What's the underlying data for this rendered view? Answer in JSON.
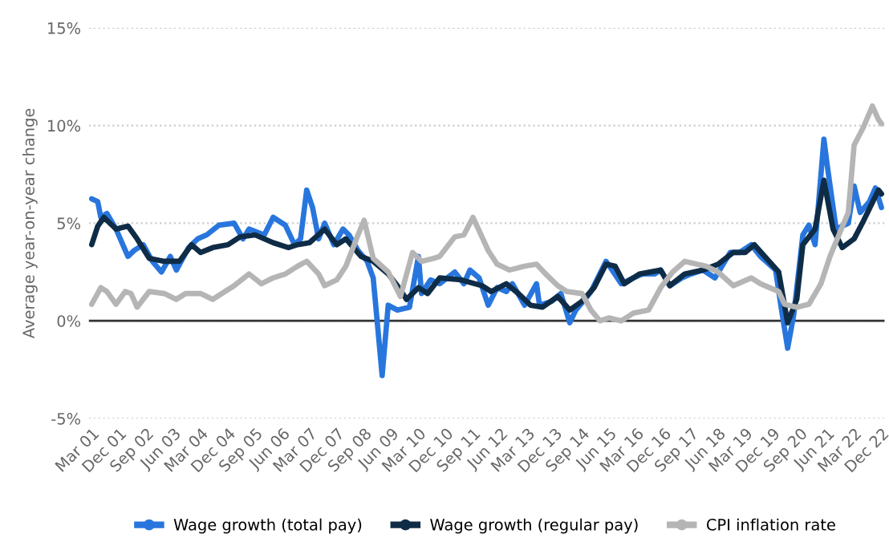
{
  "chart_data": {
    "type": "line",
    "ylabel": "Average year-on-year change",
    "xlim": [
      "2001-02",
      "2023-01"
    ],
    "ylim": [
      -5,
      15
    ],
    "yticks": [
      {
        "value": -5,
        "label": "-5%"
      },
      {
        "value": 0,
        "label": "0%"
      },
      {
        "value": 5,
        "label": "5%"
      },
      {
        "value": 10,
        "label": "10%"
      },
      {
        "value": 15,
        "label": "15%"
      }
    ],
    "xticks": [
      {
        "value": "2001-03",
        "label": "Mar 01"
      },
      {
        "value": "2001-12",
        "label": "Dec 01"
      },
      {
        "value": "2002-09",
        "label": "Sep 02"
      },
      {
        "value": "2003-06",
        "label": "Jun 03"
      },
      {
        "value": "2004-03",
        "label": "Mar 04"
      },
      {
        "value": "2004-12",
        "label": "Dec 04"
      },
      {
        "value": "2005-09",
        "label": "Sep 05"
      },
      {
        "value": "2006-06",
        "label": "Jun 06"
      },
      {
        "value": "2007-03",
        "label": "Mar 07"
      },
      {
        "value": "2007-12",
        "label": "Dec 07"
      },
      {
        "value": "2008-09",
        "label": "Sep 08"
      },
      {
        "value": "2009-06",
        "label": "Jun 09"
      },
      {
        "value": "2010-03",
        "label": "Mar 10"
      },
      {
        "value": "2010-12",
        "label": "Dec 10"
      },
      {
        "value": "2011-09",
        "label": "Sep 11"
      },
      {
        "value": "2012-06",
        "label": "Jun 12"
      },
      {
        "value": "2013-03",
        "label": "Mar 13"
      },
      {
        "value": "2013-12",
        "label": "Dec 13"
      },
      {
        "value": "2014-09",
        "label": "Sep 14"
      },
      {
        "value": "2015-06",
        "label": "Jun 15"
      },
      {
        "value": "2016-03",
        "label": "Mar 16"
      },
      {
        "value": "2016-12",
        "label": "Dec 16"
      },
      {
        "value": "2017-09",
        "label": "Sep 17"
      },
      {
        "value": "2018-06",
        "label": "Jun 18"
      },
      {
        "value": "2019-03",
        "label": "Mar 19"
      },
      {
        "value": "2019-12",
        "label": "Dec 19"
      },
      {
        "value": "2020-09",
        "label": "Sep 20"
      },
      {
        "value": "2021-06",
        "label": "Jun 21"
      },
      {
        "value": "2022-03",
        "label": "Mar 22"
      },
      {
        "value": "2022-12",
        "label": "Dec 22"
      }
    ],
    "grid": "y",
    "legend": "bottom",
    "marker": "none",
    "line_style": "solid",
    "ref_lines": [
      {
        "axis": "y",
        "value": 0,
        "color": "#333333"
      }
    ],
    "series": [
      {
        "name": "Wage growth (total pay)",
        "color": "#2876dd",
        "x": [
          "2001-03",
          "2001-05",
          "2001-06",
          "2001-08",
          "2001-11",
          "2002-03",
          "2002-05",
          "2002-08",
          "2002-11",
          "2003-02",
          "2003-05",
          "2003-07",
          "2003-11",
          "2004-02",
          "2004-05",
          "2004-09",
          "2005-02",
          "2005-05",
          "2005-07",
          "2005-12",
          "2006-03",
          "2006-07",
          "2006-10",
          "2006-12",
          "2007-02",
          "2007-04",
          "2007-06",
          "2007-08",
          "2007-11",
          "2008-02",
          "2008-04",
          "2008-07",
          "2008-10",
          "2008-12",
          "2009-03",
          "2009-05",
          "2009-08",
          "2009-12",
          "2010-03",
          "2010-04",
          "2010-07",
          "2010-10",
          "2011-03",
          "2011-06",
          "2011-08",
          "2011-11",
          "2012-02",
          "2012-05",
          "2012-08",
          "2012-10",
          "2013-02",
          "2013-06",
          "2013-07",
          "2013-11",
          "2014-02",
          "2014-05",
          "2014-07",
          "2014-10",
          "2014-12",
          "2015-05",
          "2015-07",
          "2015-10",
          "2016-02",
          "2016-05",
          "2016-09",
          "2016-11",
          "2017-02",
          "2017-06",
          "2017-09",
          "2018-01",
          "2018-05",
          "2018-10",
          "2019-01",
          "2019-05",
          "2019-08",
          "2020-01",
          "2020-03",
          "2020-05",
          "2020-07",
          "2020-10",
          "2020-12",
          "2021-02",
          "2021-05",
          "2021-06",
          "2021-09",
          "2022-01",
          "2022-03",
          "2022-05",
          "2022-08",
          "2022-10",
          "2022-12"
        ],
        "values": [
          6.25,
          6.1,
          5.3,
          5.5,
          4.7,
          3.3,
          3.6,
          3.9,
          3.05,
          2.5,
          3.3,
          2.6,
          3.75,
          4.2,
          4.4,
          4.9,
          5.0,
          4.2,
          4.7,
          4.4,
          5.3,
          4.9,
          3.9,
          4.2,
          6.7,
          5.8,
          4.2,
          5.0,
          3.9,
          4.7,
          4.4,
          3.6,
          3.05,
          2.2,
          -2.8,
          0.8,
          0.55,
          0.7,
          3.3,
          1.4,
          2.1,
          1.9,
          2.5,
          1.9,
          2.6,
          2.2,
          0.8,
          1.7,
          1.5,
          1.9,
          0.8,
          1.9,
          0.8,
          1.0,
          1.4,
          -0.1,
          0.55,
          1.1,
          1.5,
          3.05,
          2.6,
          1.9,
          2.2,
          2.4,
          2.4,
          2.6,
          1.8,
          2.2,
          2.4,
          2.6,
          2.2,
          3.5,
          3.5,
          3.9,
          3.3,
          2.6,
          0.55,
          -1.4,
          0.3,
          4.4,
          4.9,
          3.9,
          9.3,
          8.05,
          4.7,
          5.0,
          6.9,
          5.55,
          6.1,
          6.8,
          5.8
        ]
      },
      {
        "name": "Wage growth (regular pay)",
        "color": "#0f2c47",
        "x": [
          "2001-03",
          "2001-05",
          "2001-07",
          "2001-11",
          "2002-03",
          "2002-06",
          "2002-10",
          "2003-03",
          "2003-08",
          "2003-12",
          "2004-03",
          "2004-07",
          "2004-12",
          "2005-04",
          "2005-09",
          "2006-03",
          "2006-08",
          "2006-11",
          "2007-03",
          "2007-08",
          "2007-12",
          "2008-03",
          "2008-08",
          "2008-12",
          "2009-05",
          "2009-08",
          "2009-11",
          "2010-03",
          "2010-06",
          "2010-10",
          "2011-05",
          "2011-12",
          "2012-03",
          "2012-08",
          "2012-12",
          "2013-04",
          "2013-08",
          "2014-01",
          "2014-05",
          "2014-09",
          "2015-01",
          "2015-05",
          "2015-08",
          "2015-11",
          "2016-04",
          "2016-11",
          "2017-02",
          "2017-07",
          "2018-01",
          "2018-06",
          "2018-11",
          "2019-03",
          "2019-06",
          "2019-10",
          "2020-02",
          "2020-05",
          "2020-08",
          "2020-10",
          "2021-02",
          "2021-05",
          "2021-08",
          "2021-11",
          "2022-03",
          "2022-06",
          "2022-11",
          "2022-12"
        ],
        "values": [
          3.9,
          4.85,
          5.3,
          4.7,
          4.85,
          4.2,
          3.2,
          3.05,
          3.05,
          3.9,
          3.5,
          3.75,
          3.9,
          4.3,
          4.4,
          4.0,
          3.75,
          3.9,
          4.0,
          4.7,
          3.9,
          4.2,
          3.3,
          3.05,
          2.4,
          1.8,
          1.1,
          1.7,
          1.4,
          2.2,
          2.1,
          1.8,
          1.5,
          1.9,
          1.4,
          0.8,
          0.7,
          1.25,
          0.55,
          1.0,
          1.7,
          2.9,
          2.8,
          1.9,
          2.4,
          2.6,
          1.8,
          2.4,
          2.6,
          2.9,
          3.5,
          3.5,
          3.9,
          3.2,
          2.5,
          -0.1,
          1.1,
          3.9,
          4.7,
          7.2,
          4.7,
          3.75,
          4.2,
          5.1,
          6.7,
          6.5
        ]
      },
      {
        "name": "CPI inflation rate",
        "color": "#b5b5b5",
        "x": [
          "2001-03",
          "2001-06",
          "2001-08",
          "2001-11",
          "2002-02",
          "2002-04",
          "2002-06",
          "2002-10",
          "2003-03",
          "2003-07",
          "2003-10",
          "2004-03",
          "2004-07",
          "2004-11",
          "2005-02",
          "2005-07",
          "2005-11",
          "2006-03",
          "2006-07",
          "2006-11",
          "2007-02",
          "2007-06",
          "2007-08",
          "2007-12",
          "2008-03",
          "2008-07",
          "2008-09",
          "2008-12",
          "2009-05",
          "2009-09",
          "2010-01",
          "2010-04",
          "2010-08",
          "2010-10",
          "2011-03",
          "2011-06",
          "2011-09",
          "2012-02",
          "2012-05",
          "2012-09",
          "2013-02",
          "2013-06",
          "2013-09",
          "2014-01",
          "2014-04",
          "2014-09",
          "2014-12",
          "2015-03",
          "2015-06",
          "2015-10",
          "2016-02",
          "2016-07",
          "2016-11",
          "2017-03",
          "2017-07",
          "2017-11",
          "2018-02",
          "2018-06",
          "2018-11",
          "2019-05",
          "2019-08",
          "2020-02",
          "2020-04",
          "2020-08",
          "2020-12",
          "2021-04",
          "2021-07",
          "2022-01",
          "2022-03",
          "2022-06",
          "2022-09",
          "2022-11",
          "2022-12"
        ],
        "values": [
          0.85,
          1.7,
          1.5,
          0.85,
          1.5,
          1.4,
          0.7,
          1.5,
          1.4,
          1.1,
          1.4,
          1.4,
          1.1,
          1.5,
          1.8,
          2.4,
          1.9,
          2.2,
          2.4,
          2.8,
          3.05,
          2.4,
          1.8,
          2.1,
          2.8,
          4.4,
          5.15,
          3.2,
          2.5,
          1.25,
          3.5,
          3.05,
          3.2,
          3.3,
          4.3,
          4.4,
          5.3,
          3.6,
          2.9,
          2.6,
          2.8,
          2.9,
          2.4,
          1.8,
          1.5,
          1.4,
          0.55,
          0.0,
          0.15,
          0.0,
          0.4,
          0.55,
          1.7,
          2.5,
          3.05,
          2.9,
          2.8,
          2.5,
          1.8,
          2.2,
          1.9,
          1.5,
          0.85,
          0.7,
          0.85,
          1.9,
          3.3,
          5.55,
          9.0,
          9.9,
          11.0,
          10.3,
          10.1
        ]
      }
    ]
  }
}
